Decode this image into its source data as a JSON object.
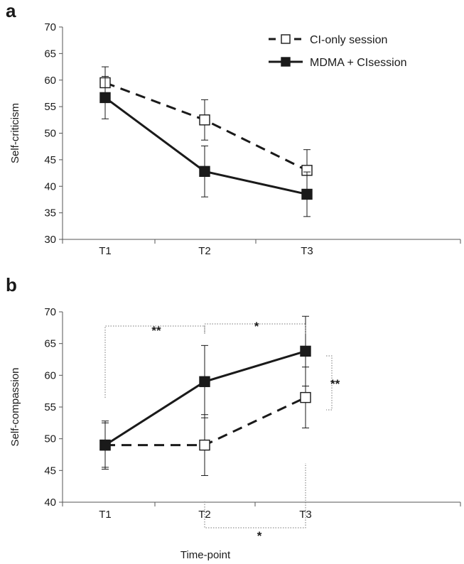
{
  "chart_data": [
    {
      "panel": "a",
      "type": "line",
      "categories": [
        "T1",
        "T2",
        "T3"
      ],
      "ylabel": "Self-criticism",
      "xlabel": "",
      "ylim": [
        30,
        70
      ],
      "yticks": [
        30,
        35,
        40,
        45,
        50,
        55,
        60,
        65,
        70
      ],
      "grid": false,
      "legend_position": "top-right",
      "series": [
        {
          "name": "CI-only session",
          "style": "dashed",
          "marker": "open-square",
          "values": [
            59.5,
            52.5,
            43.0
          ],
          "error": [
            3.0,
            3.8,
            3.9
          ]
        },
        {
          "name": "MDMA + CIsession",
          "style": "solid",
          "marker": "filled-square",
          "values": [
            56.7,
            42.8,
            38.5
          ],
          "error": [
            4.0,
            4.8,
            4.2
          ]
        }
      ],
      "annotations": []
    },
    {
      "panel": "b",
      "type": "line",
      "categories": [
        "T1",
        "T2",
        "T3"
      ],
      "ylabel": "Self-compassion",
      "xlabel": "Time-point",
      "ylim": [
        40,
        70
      ],
      "yticks": [
        40,
        45,
        50,
        55,
        60,
        65,
        70
      ],
      "grid": false,
      "series": [
        {
          "name": "CI-only session",
          "style": "dashed",
          "marker": "open-square",
          "values": [
            49.0,
            49.0,
            56.5
          ],
          "error": [
            3.5,
            4.8,
            4.8
          ]
        },
        {
          "name": "MDMA + CIsession",
          "style": "solid",
          "marker": "filled-square",
          "values": [
            49.0,
            59.0,
            63.8
          ],
          "error": [
            3.8,
            5.7,
            5.5
          ]
        }
      ],
      "annotations": [
        {
          "label": "**",
          "from": "T1",
          "to": "T2",
          "position": "above"
        },
        {
          "label": "*",
          "from": "T2",
          "to": "T3",
          "position": "above"
        },
        {
          "label": "**",
          "from": "T3",
          "to": "T3",
          "position": "right"
        },
        {
          "label": "*",
          "from": "T2",
          "to": "T3",
          "position": "below"
        }
      ]
    }
  ],
  "style": {
    "line_color": "#1a1a1a",
    "bracket_color": "#777777",
    "axis_color": "#555555"
  }
}
